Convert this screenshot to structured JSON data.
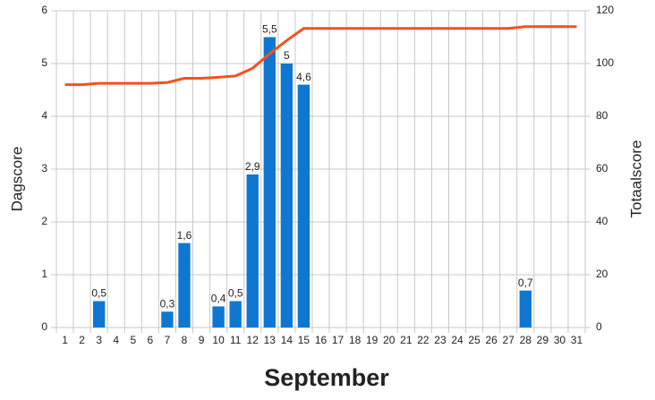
{
  "chart_data": {
    "type": "bar-line",
    "x_label": "September",
    "y_label": "Dagscore",
    "y2_label": "Totaalscore",
    "categories": [
      "1",
      "2",
      "3",
      "4",
      "5",
      "6",
      "7",
      "8",
      "9",
      "10",
      "11",
      "12",
      "13",
      "14",
      "15",
      "16",
      "17",
      "18",
      "19",
      "20",
      "21",
      "22",
      "23",
      "24",
      "25",
      "26",
      "27",
      "28",
      "29",
      "30",
      "31"
    ],
    "series": [
      {
        "name": "Dagscore",
        "type": "bar",
        "color": "#0f77d1",
        "values": [
          null,
          null,
          0.5,
          null,
          null,
          null,
          0.3,
          1.6,
          null,
          0.4,
          0.5,
          2.9,
          5.5,
          5,
          4.6,
          null,
          null,
          null,
          null,
          null,
          null,
          null,
          null,
          null,
          null,
          null,
          null,
          0.7,
          null,
          null,
          null
        ],
        "value_labels": [
          null,
          null,
          "0,5",
          null,
          null,
          null,
          "0,3",
          "1,6",
          null,
          "0,4",
          "0,5",
          "2,9",
          "5,5",
          "5",
          "4,6",
          null,
          null,
          null,
          null,
          null,
          null,
          null,
          null,
          null,
          null,
          null,
          null,
          "0,7",
          null,
          null,
          null
        ]
      },
      {
        "name": "Totaalscore",
        "type": "line",
        "axis": "y2",
        "color": "#f4511e",
        "values": [
          92,
          92,
          92.5,
          92.5,
          92.5,
          92.5,
          92.8,
          94.4,
          94.4,
          94.8,
          95.3,
          98.2,
          103.7,
          108.7,
          113.3,
          113.3,
          113.3,
          113.3,
          113.3,
          113.3,
          113.3,
          113.3,
          113.3,
          113.3,
          113.3,
          113.3,
          113.3,
          114,
          114,
          114,
          114
        ]
      }
    ],
    "ylim": [
      0,
      6
    ],
    "yticks": [
      0,
      1,
      2,
      3,
      4,
      5,
      6
    ],
    "y2lim": [
      0,
      120
    ],
    "y2ticks": [
      0,
      20,
      40,
      60,
      80,
      100,
      120
    ],
    "grid": true
  }
}
